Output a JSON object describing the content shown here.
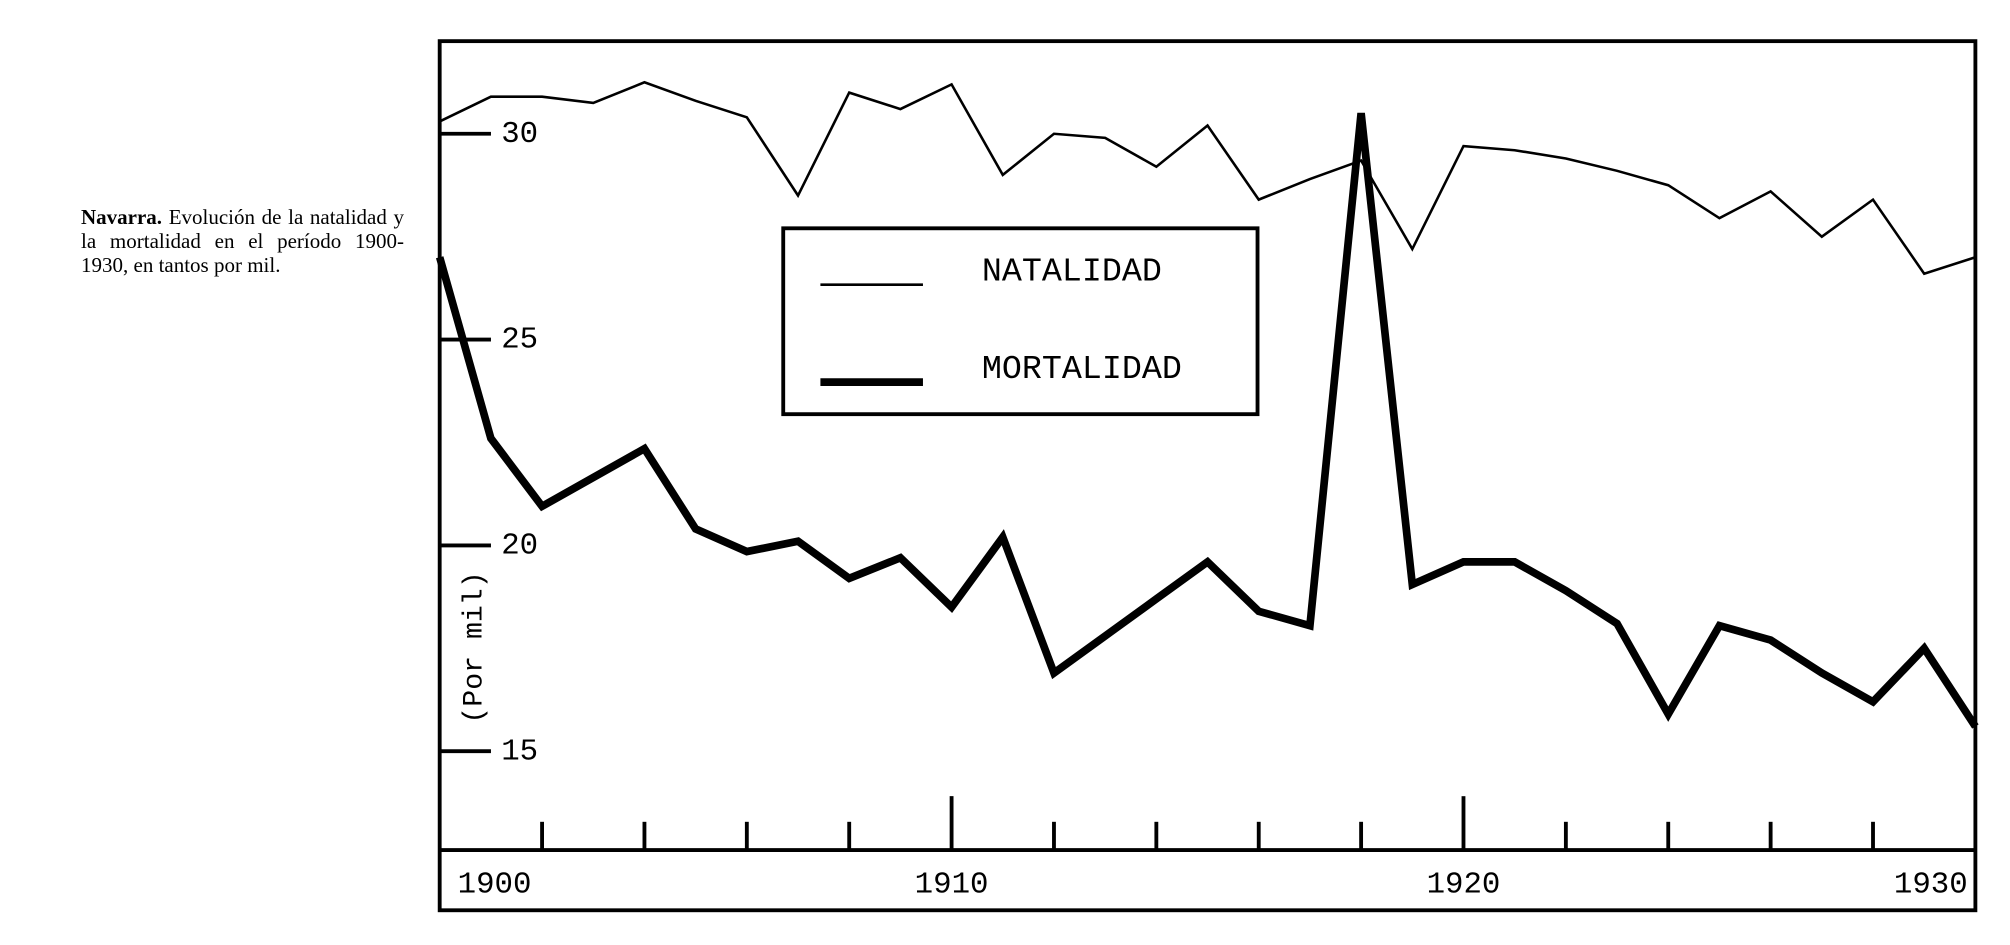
{
  "caption": {
    "bold": "Navarra.",
    "text": "Evolución de la natalidad y la mortalidad en el período 1900-1930, en tantos por mil."
  },
  "chart_data": {
    "type": "line",
    "ylabel": "(Por mil)",
    "x": [
      1900,
      1901,
      1902,
      1903,
      1904,
      1905,
      1906,
      1907,
      1908,
      1909,
      1910,
      1911,
      1912,
      1913,
      1914,
      1915,
      1916,
      1917,
      1918,
      1919,
      1920,
      1921,
      1922,
      1923,
      1924,
      1925,
      1926,
      1927,
      1928,
      1929,
      1930
    ],
    "series": [
      {
        "name": "NATALIDAD",
        "color": "#000000",
        "width": 2,
        "values": [
          30.3,
          30.9,
          30.9,
          30.75,
          31.25,
          30.8,
          30.4,
          28.5,
          31.0,
          30.6,
          31.2,
          29.0,
          30.0,
          29.9,
          29.2,
          30.2,
          28.4,
          28.9,
          29.35,
          27.2,
          29.7,
          29.6,
          29.4,
          29.1,
          28.75,
          27.95,
          28.6,
          27.5,
          28.4,
          26.6,
          27.0
        ]
      },
      {
        "name": "MORTALIDAD",
        "color": "#000000",
        "width": 6,
        "values": [
          27.0,
          22.6,
          20.95,
          21.65,
          22.35,
          20.4,
          19.85,
          20.1,
          19.2,
          19.7,
          18.5,
          20.2,
          16.9,
          17.8,
          18.7,
          19.6,
          18.4,
          18.05,
          30.5,
          19.05,
          19.6,
          19.6,
          18.9,
          18.1,
          15.9,
          18.05,
          17.7,
          16.9,
          16.2,
          17.5,
          15.6
        ]
      }
    ],
    "xlim": [
      1900,
      1930
    ],
    "xticks": [
      1900,
      1910,
      1920,
      1930
    ],
    "xticks_minor": [
      1902,
      1904,
      1906,
      1908,
      1912,
      1914,
      1916,
      1918,
      1922,
      1924,
      1926,
      1928
    ],
    "ylim": [
      12.6,
      32.25
    ],
    "yticks": [
      15,
      20,
      25,
      30
    ]
  }
}
